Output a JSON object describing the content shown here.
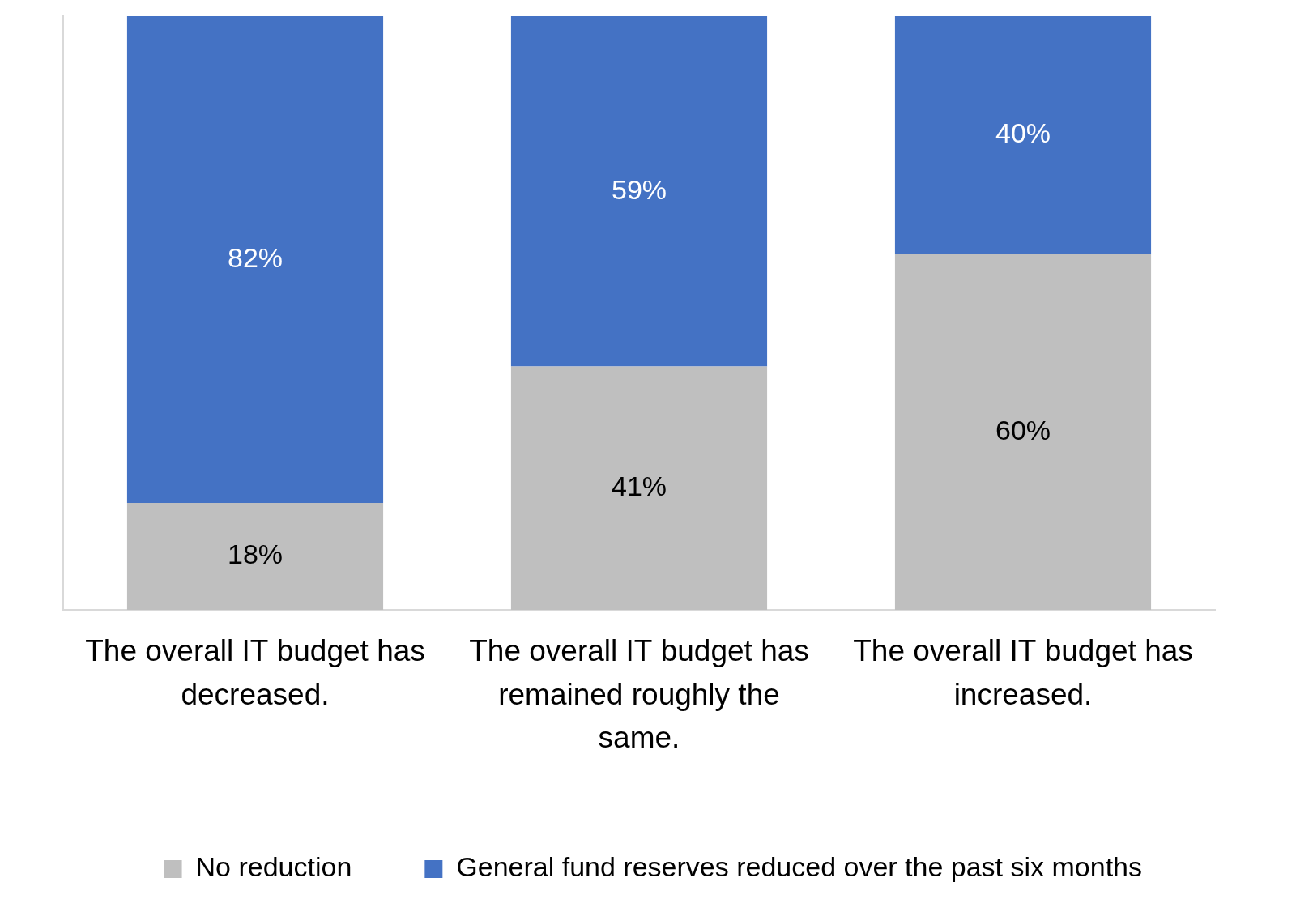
{
  "chart_data": {
    "type": "bar",
    "stacked": true,
    "data_labels": true,
    "tick_labels": "x",
    "grid": false,
    "legend": "bottom",
    "categories": [
      "The overall IT budget has decreased.",
      "The overall IT budget has remained roughly the same.",
      "The overall IT budget has increased."
    ],
    "ylim": [
      0,
      100
    ],
    "series": [
      {
        "name": "No reduction",
        "color": "#bfbfbf",
        "values": [
          18,
          41,
          60
        ],
        "value_labels": [
          "18%",
          "41%",
          "60%"
        ]
      },
      {
        "name": "General fund reserves reduced over the past six months",
        "color": "#4472c4",
        "values": [
          82,
          59,
          40
        ],
        "value_labels": [
          "82%",
          "59%",
          "40%"
        ]
      }
    ]
  }
}
